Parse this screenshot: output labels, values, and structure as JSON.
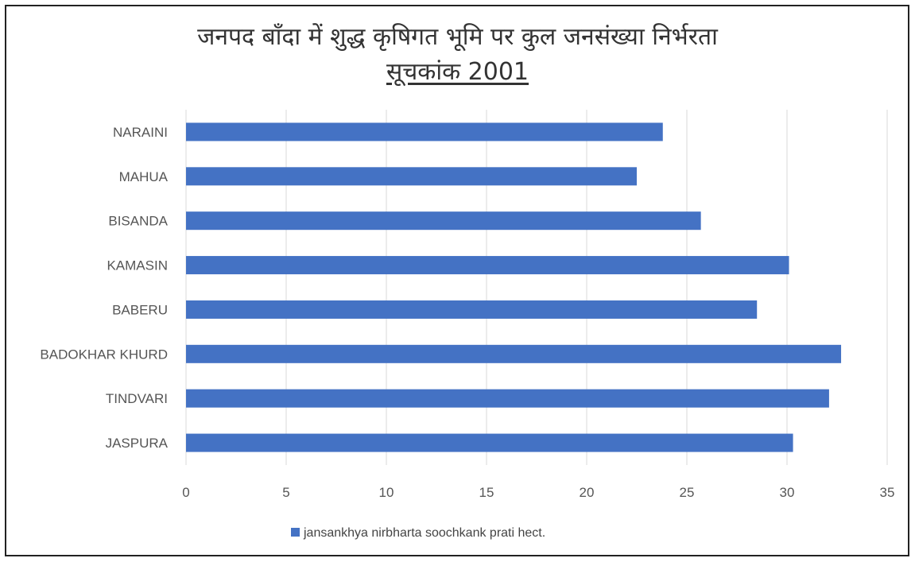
{
  "chart_data": {
    "type": "bar",
    "orientation": "horizontal",
    "title_line1": "जनपद बाँदा  में शुद्ध कृषिगत भूमि पर कुल जनसंख्या निर्भरता",
    "title_line2": "सूचकांक  2001",
    "categories": [
      "NARAINI",
      "MAHUA",
      "BISANDA",
      "KAMASIN",
      "BABERU",
      "BADOKHAR KHURD",
      "TINDVARI",
      "JASPURA"
    ],
    "series": [
      {
        "name": "jansankhya nirbharta soochkank prati hect.",
        "color": "#4472C4",
        "values": [
          23.8,
          22.5,
          25.7,
          30.1,
          28.5,
          32.7,
          32.1,
          30.3
        ]
      }
    ],
    "xlim": [
      0,
      35
    ],
    "xticks": [
      0,
      5,
      10,
      15,
      20,
      25,
      30,
      35
    ],
    "xlabel": "",
    "ylabel": "",
    "grid": "vertical",
    "legend": "bottom"
  }
}
